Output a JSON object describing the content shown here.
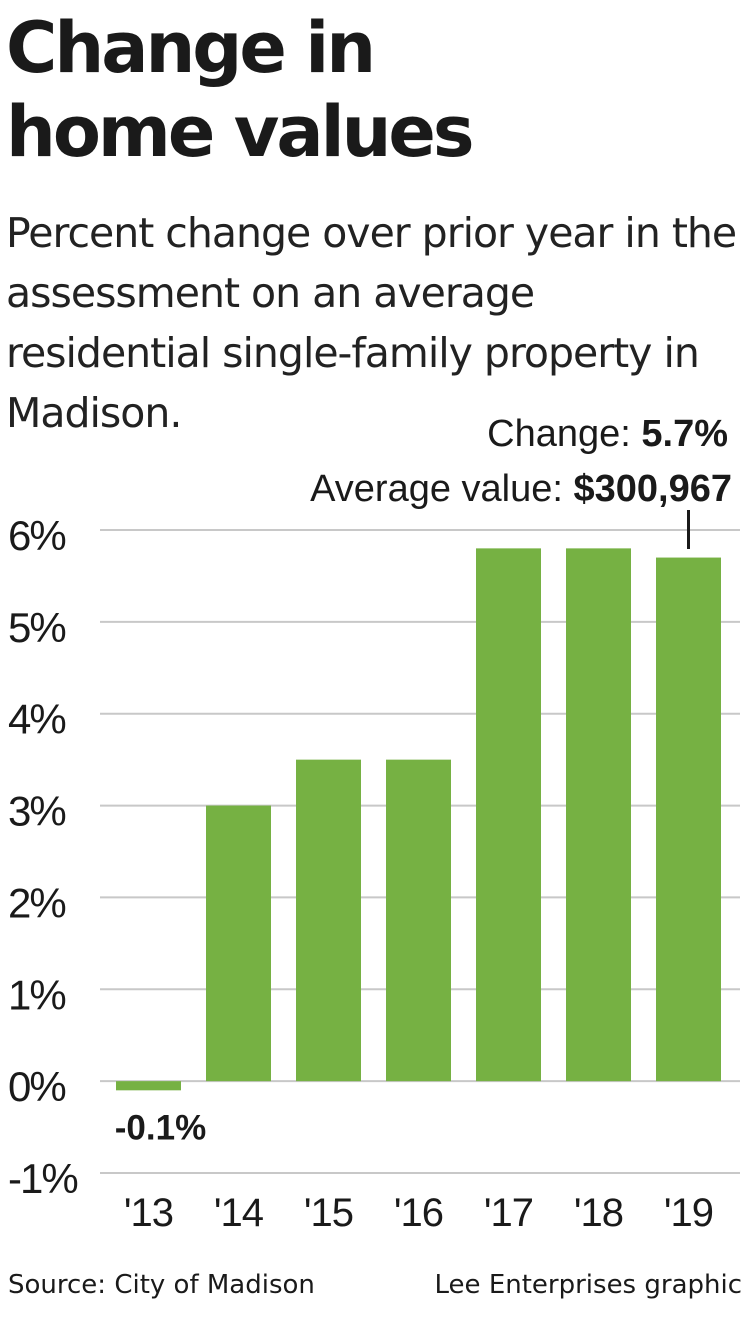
{
  "title_line1": "Change in",
  "title_line2": "home values",
  "subtitle": "Percent change over prior year in the assessment on an average residential single-family property in Madison.",
  "source": "Source: City of Madison",
  "credit": "Lee Enterprises graphic",
  "colors": {
    "bar": "#76b143",
    "grid": "#c8c8c8",
    "text": "#1a1a1a"
  },
  "chart_data": {
    "type": "bar",
    "categories": [
      "'13",
      "'14",
      "'15",
      "'16",
      "'17",
      "'18",
      "'19"
    ],
    "values": [
      -0.1,
      3.0,
      3.5,
      3.5,
      5.8,
      5.8,
      5.7
    ],
    "unit": "%",
    "ylim": [
      -1,
      6
    ],
    "yticks": [
      6,
      5,
      4,
      3,
      2,
      1,
      0,
      -1
    ],
    "ytick_labels": [
      "6%",
      "5%",
      "4%",
      "3%",
      "2%",
      "1%",
      "0%",
      "-1%"
    ],
    "grid": true,
    "annotations": [
      {
        "category": "'13",
        "label": "-0.1%"
      },
      {
        "category": "'19",
        "change_label": "Change: ",
        "change_value": "5.7%",
        "avg_label": "Average value: ",
        "avg_value": "$300,967"
      }
    ]
  }
}
